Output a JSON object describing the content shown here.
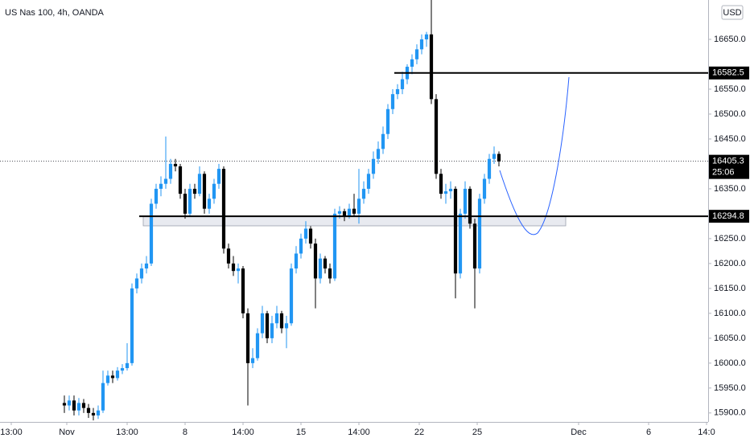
{
  "chart_data": {
    "type": "candlestick",
    "title": "US Nas 100, 4h, OANDA",
    "currency": "USD",
    "up_color": "#2196f3",
    "down_color": "#000000",
    "candles": [
      [
        15920,
        15935,
        15900,
        15915
      ],
      [
        15915,
        15935,
        15905,
        15925
      ],
      [
        15925,
        15935,
        15895,
        15905
      ],
      [
        15905,
        15930,
        15895,
        15920
      ],
      [
        15920,
        15928,
        15900,
        15910
      ],
      [
        15910,
        15918,
        15890,
        15900
      ],
      [
        15900,
        15910,
        15885,
        15895
      ],
      [
        15895,
        15915,
        15888,
        15905
      ],
      [
        15905,
        15985,
        15900,
        15960
      ],
      [
        15960,
        15985,
        15955,
        15975
      ],
      [
        15975,
        15985,
        15960,
        15970
      ],
      [
        15970,
        15992,
        15965,
        15985
      ],
      [
        15985,
        15998,
        15978,
        15990
      ],
      [
        15990,
        16040,
        15985,
        16000
      ],
      [
        16000,
        16160,
        15995,
        16150
      ],
      [
        16150,
        16180,
        16140,
        16170
      ],
      [
        16170,
        16200,
        16160,
        16190
      ],
      [
        16190,
        16215,
        16180,
        16200
      ],
      [
        16200,
        16330,
        16195,
        16320
      ],
      [
        16320,
        16360,
        16310,
        16350
      ],
      [
        16350,
        16375,
        16335,
        16360
      ],
      [
        16360,
        16455,
        16350,
        16370
      ],
      [
        16370,
        16410,
        16360,
        16400
      ],
      [
        16400,
        16410,
        16385,
        16395
      ],
      [
        16395,
        16400,
        16330,
        16340
      ],
      [
        16340,
        16350,
        16290,
        16300
      ],
      [
        16300,
        16360,
        16295,
        16350
      ],
      [
        16350,
        16360,
        16330,
        16340
      ],
      [
        16340,
        16395,
        16335,
        16380
      ],
      [
        16380,
        16385,
        16300,
        16310
      ],
      [
        16310,
        16340,
        16300,
        16330
      ],
      [
        16330,
        16370,
        16320,
        16360
      ],
      [
        16360,
        16400,
        16350,
        16390
      ],
      [
        16390,
        16395,
        16220,
        16230
      ],
      [
        16230,
        16240,
        16190,
        16200
      ],
      [
        16200,
        16215,
        16175,
        16185
      ],
      [
        16185,
        16200,
        16160,
        16190
      ],
      [
        16190,
        16195,
        16090,
        16100
      ],
      [
        16100,
        16110,
        15915,
        16000
      ],
      [
        16000,
        16030,
        15990,
        16010
      ],
      [
        16010,
        16070,
        16005,
        16060
      ],
      [
        16060,
        16115,
        16050,
        16100
      ],
      [
        16100,
        16105,
        16040,
        16050
      ],
      [
        16050,
        16095,
        16040,
        16080
      ],
      [
        16080,
        16115,
        16070,
        16100
      ],
      [
        16100,
        16105,
        16060,
        16070
      ],
      [
        16070,
        16095,
        16030,
        16080
      ],
      [
        16080,
        16200,
        16075,
        16190
      ],
      [
        16190,
        16235,
        16180,
        16220
      ],
      [
        16220,
        16260,
        16210,
        16250
      ],
      [
        16250,
        16285,
        16240,
        16270
      ],
      [
        16270,
        16275,
        16230,
        16240
      ],
      [
        16240,
        16250,
        16110,
        16170
      ],
      [
        16170,
        16220,
        16160,
        16210
      ],
      [
        16210,
        16215,
        16180,
        16190
      ],
      [
        16190,
        16200,
        16160,
        16170
      ],
      [
        16170,
        16310,
        16165,
        16300
      ],
      [
        16300,
        16315,
        16290,
        16305
      ],
      [
        16305,
        16310,
        16285,
        16295
      ],
      [
        16295,
        16320,
        16290,
        16310
      ],
      [
        16310,
        16340,
        16295,
        16300
      ],
      [
        16300,
        16390,
        16280,
        16330
      ],
      [
        16330,
        16365,
        16320,
        16350
      ],
      [
        16350,
        16390,
        16340,
        16380
      ],
      [
        16380,
        16425,
        16370,
        16410
      ],
      [
        16410,
        16445,
        16400,
        16430
      ],
      [
        16430,
        16475,
        16420,
        16460
      ],
      [
        16460,
        16520,
        16450,
        16510
      ],
      [
        16510,
        16550,
        16500,
        16540
      ],
      [
        16540,
        16560,
        16530,
        16550
      ],
      [
        16550,
        16585,
        16540,
        16570
      ],
      [
        16570,
        16600,
        16560,
        16595
      ],
      [
        16595,
        16620,
        16580,
        16610
      ],
      [
        16610,
        16640,
        16600,
        16630
      ],
      [
        16630,
        16660,
        16620,
        16650
      ],
      [
        16650,
        16665,
        16635,
        16660
      ],
      [
        16660,
        16730,
        16520,
        16530
      ],
      [
        16530,
        16540,
        16370,
        16380
      ],
      [
        16380,
        16390,
        16330,
        16340
      ],
      [
        16340,
        16360,
        16320,
        16345
      ],
      [
        16345,
        16365,
        16330,
        16350
      ],
      [
        16350,
        16355,
        16130,
        16180
      ],
      [
        16180,
        16310,
        16170,
        16300
      ],
      [
        16300,
        16365,
        16290,
        16350
      ],
      [
        16350,
        16355,
        16270,
        16280
      ],
      [
        16280,
        16290,
        16110,
        16190
      ],
      [
        16190,
        16340,
        16180,
        16330
      ],
      [
        16330,
        16380,
        16320,
        16370
      ],
      [
        16370,
        16420,
        16360,
        16410
      ],
      [
        16410,
        16435,
        16400,
        16420
      ],
      [
        16420,
        16425,
        16395,
        16405
      ]
    ],
    "xlim": [
      -13.33,
      133.33
    ],
    "xticks": [
      {
        "value": -11,
        "label": "13:00"
      },
      {
        "value": 0.5,
        "label": "Nov"
      },
      {
        "value": 13,
        "label": "13:00"
      },
      {
        "value": 25,
        "label": "8"
      },
      {
        "value": 37,
        "label": "14:00"
      },
      {
        "value": 49,
        "label": "15"
      },
      {
        "value": 61,
        "label": "14:00"
      },
      {
        "value": 73.5,
        "label": "22"
      },
      {
        "value": 85.5,
        "label": "25"
      },
      {
        "value": 106.5,
        "label": "Dec"
      },
      {
        "value": 121,
        "label": "6"
      },
      {
        "value": 133,
        "label": "14:0"
      }
    ],
    "ylim": [
      15882,
      16729
    ],
    "yticks": [
      {
        "value": 15900,
        "label": "15900.0"
      },
      {
        "value": 15950,
        "label": "15950.0"
      },
      {
        "value": 16000,
        "label": "16000.0"
      },
      {
        "value": 16050,
        "label": "16050.0"
      },
      {
        "value": 16100,
        "label": "16100.0"
      },
      {
        "value": 16150,
        "label": "16150.0"
      },
      {
        "value": 16200,
        "label": "16200.0"
      },
      {
        "value": 16250,
        "label": "16250.0"
      },
      {
        "value": 16350,
        "label": "16350.0"
      },
      {
        "value": 16450,
        "label": "16450.0"
      },
      {
        "value": 16500,
        "label": "16500.0"
      },
      {
        "value": 16550,
        "label": "16550.0"
      },
      {
        "value": 16650,
        "label": "16650.0"
      }
    ],
    "levels": [
      16582.5,
      16294.8
    ],
    "last_price": 16405.3,
    "countdown": "25:06"
  }
}
